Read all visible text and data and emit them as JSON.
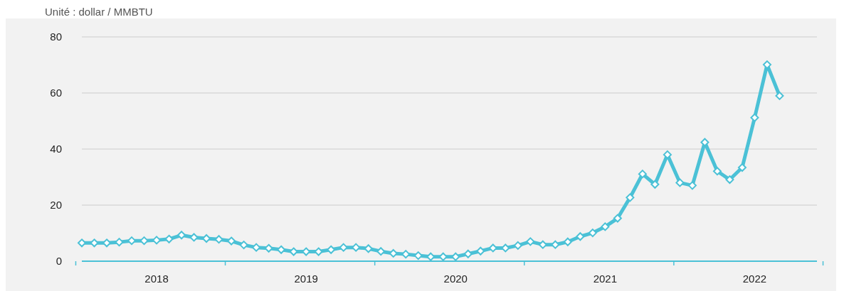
{
  "chart_data": {
    "type": "line",
    "subtitle": "Unité : dollar / MMBTU",
    "categories": [
      null,
      null,
      null,
      null,
      null,
      null,
      "2018",
      null,
      null,
      null,
      null,
      null,
      null,
      null,
      null,
      null,
      null,
      null,
      "2019",
      null,
      null,
      null,
      null,
      null,
      null,
      null,
      null,
      null,
      null,
      null,
      "2020",
      null,
      null,
      null,
      null,
      null,
      null,
      null,
      null,
      null,
      null,
      null,
      "2021",
      null,
      null,
      null,
      null,
      null,
      null,
      null,
      null,
      null,
      null,
      null,
      "2022",
      null,
      null,
      null,
      null,
      null
    ],
    "series": [
      {
        "color": "#4bc1d6",
        "values": [
          6.5,
          6.5,
          6.5,
          6.8,
          7.3,
          7.3,
          7.5,
          7.9,
          9.3,
          8.5,
          8.1,
          7.8,
          7.2,
          5.8,
          4.9,
          4.6,
          4.1,
          3.4,
          3.4,
          3.4,
          4.1,
          4.9,
          4.9,
          4.5,
          3.5,
          2.8,
          2.5,
          2.0,
          1.6,
          1.6,
          1.6,
          2.6,
          3.6,
          4.7,
          4.7,
          5.6,
          7.0,
          5.9,
          5.9,
          6.9,
          8.8,
          10.1,
          12.3,
          15.3,
          22.7,
          31.1,
          27.4,
          38.0,
          28.0,
          27.0,
          42.4,
          32.1,
          29.1,
          33.4,
          51.2,
          70.1,
          59.0,
          null,
          null,
          null
        ]
      }
    ],
    "ylim": [
      0,
      80
    ],
    "yticks": [
      0,
      20,
      40,
      60,
      80
    ],
    "grid": "y",
    "marker": "diamond",
    "line_style": "solid"
  }
}
